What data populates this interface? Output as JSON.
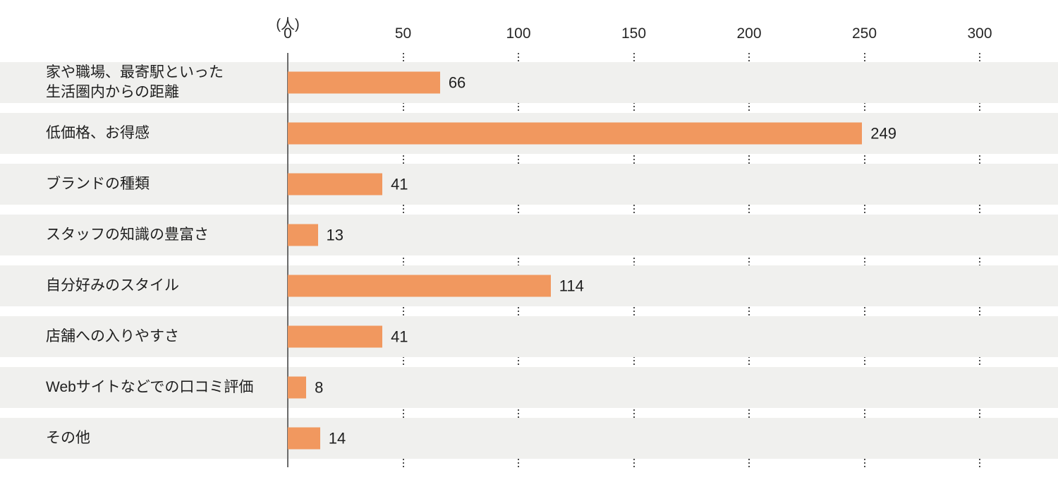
{
  "unit_label": "(人)",
  "axis": {
    "ticks": [
      0,
      50,
      100,
      150,
      200,
      250,
      300
    ]
  },
  "chart_data": {
    "type": "bar",
    "orientation": "horizontal",
    "title": "",
    "xlabel": "(人)",
    "ylabel": "",
    "xlim": [
      0,
      300
    ],
    "tick_interval": 50,
    "grid": "dotted-vertical",
    "legend": "none",
    "bar_color": "#F1985F",
    "row_band_color": "#F0F0EE",
    "categories": [
      "家や職場、最寄駅といった\n生活圏内からの距離",
      "低価格、お得感",
      "ブランドの種類",
      "スタッフの知識の豊富さ",
      "自分好みのスタイル",
      "店舗への入りやすさ",
      "Webサイトなどでの口コミ評価",
      "その他"
    ],
    "values": [
      66,
      249,
      41,
      13,
      114,
      41,
      8,
      14
    ]
  }
}
